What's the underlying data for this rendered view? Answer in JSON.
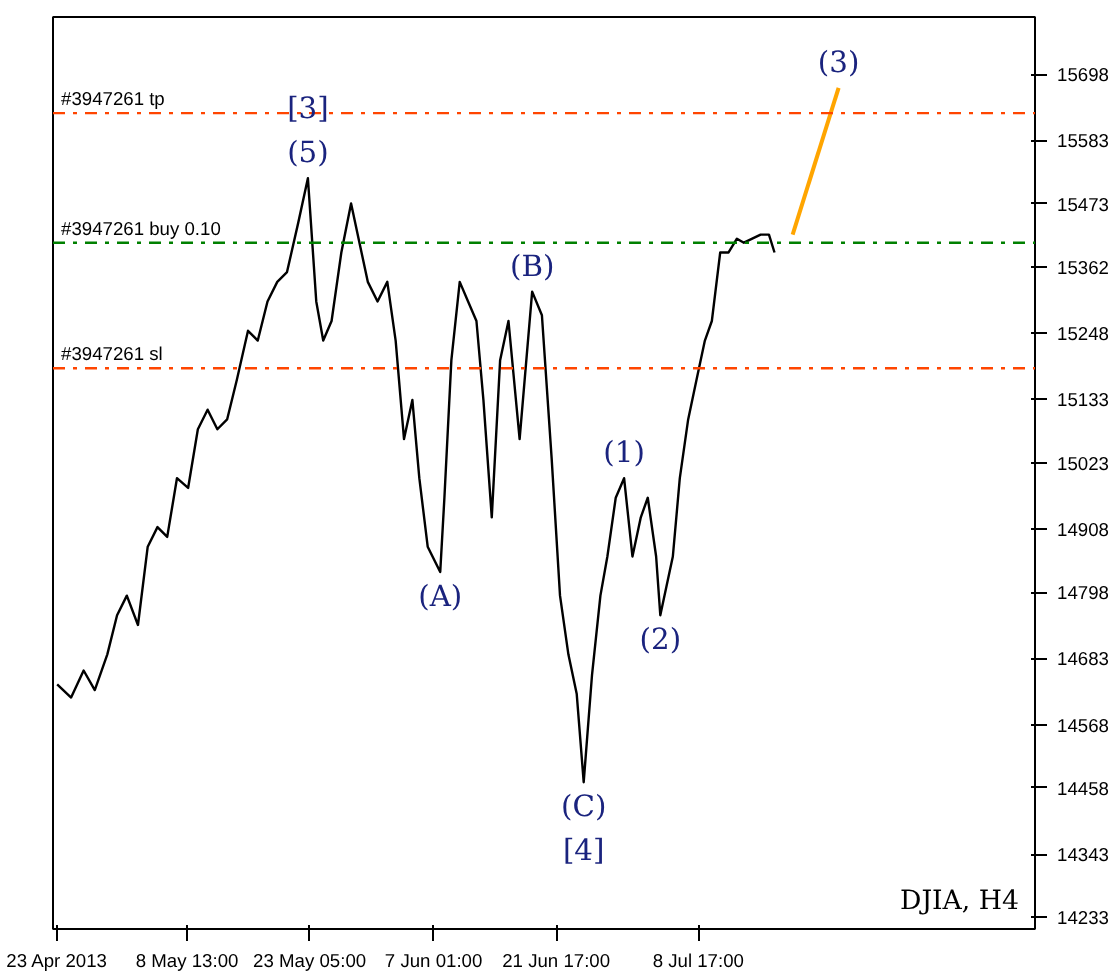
{
  "chart_data": {
    "type": "line",
    "x": [
      "2013-04-23T00:00",
      "2013-04-24T16:00",
      "2013-04-26T04:00",
      "2013-04-27T12:00",
      "2013-04-29T00:00",
      "2013-04-30T04:00",
      "2013-05-01T08:00",
      "2013-05-02T16:00",
      "2013-05-03T20:00",
      "2013-05-05T00:00",
      "2013-05-06T04:00",
      "2013-05-07T08:00",
      "2013-05-08T16:00",
      "2013-05-09T20:00",
      "2013-05-11T00:00",
      "2013-05-12T04:00",
      "2013-05-13T08:00",
      "2013-05-14T12:00",
      "2013-05-15T20:00",
      "2013-05-17T00:00",
      "2013-05-18T04:00",
      "2013-05-19T08:00",
      "2013-05-20T12:00",
      "2013-05-21T20:00",
      "2013-05-23T00:00",
      "2013-05-24T00:00",
      "2013-05-24T20:00",
      "2013-05-25T20:00",
      "2013-05-27T00:00",
      "2013-05-28T04:00",
      "2013-05-29T04:00",
      "2013-05-30T04:00",
      "2013-05-31T08:00",
      "2013-06-01T12:00",
      "2013-06-02T12:00",
      "2013-06-03T12:00",
      "2013-06-04T12:00",
      "2013-06-05T08:00",
      "2013-06-06T08:00",
      "2013-06-07T20:00",
      "2013-06-08T08:00",
      "2013-06-09T04:00",
      "2013-06-10T04:00",
      "2013-06-11T04:00",
      "2013-06-12T04:00",
      "2013-06-13T00:00",
      "2013-06-14T00:00",
      "2013-06-15T00:00",
      "2013-06-16T00:00",
      "2013-06-17T08:00",
      "2013-06-18T20:00",
      "2013-06-20T00:00",
      "2013-06-21T04:00",
      "2013-06-22T04:00",
      "2013-06-23T04:00",
      "2013-06-24T04:00",
      "2013-06-25T00:00",
      "2013-06-26T00:00",
      "2013-06-27T00:00",
      "2013-06-27T20:00",
      "2013-06-28T20:00",
      "2013-06-29T20:00",
      "2013-06-30T20:00",
      "2013-07-01T20:00",
      "2013-07-02T16:00",
      "2013-07-03T16:00",
      "2013-07-04T04:00",
      "2013-07-05T16:00",
      "2013-07-06T12:00",
      "2013-07-07T12:00",
      "2013-07-08T12:00",
      "2013-07-09T12:00",
      "2013-07-10T08:00",
      "2013-07-11T08:00",
      "2013-07-12T08:00",
      "2013-07-13T08:00",
      "2013-07-14T04:00",
      "2013-07-15T04:00",
      "2013-07-16T04:00",
      "2013-07-17T04:00",
      "2013-07-17T20:00"
    ],
    "series": [
      {
        "color": "#000000",
        "values": [
          14638,
          14615,
          14662,
          14628,
          14690,
          14758,
          14792,
          14741,
          14877,
          14911,
          14894,
          14996,
          14979,
          15081,
          15115,
          15081,
          15098,
          15167,
          15252,
          15235,
          15303,
          15337,
          15354,
          15439,
          15517,
          15303,
          15235,
          15269,
          15388,
          15473,
          15405,
          15337,
          15303,
          15337,
          15235,
          15064,
          15132,
          14996,
          14877,
          14833,
          14962,
          15201,
          15337,
          15303,
          15269,
          15132,
          14928,
          15201,
          15269,
          15064,
          15320,
          15279,
          15030,
          14792,
          14690,
          14621,
          14468,
          14655,
          14792,
          14860,
          14962,
          14996,
          14860,
          14928,
          14962,
          14860,
          14758,
          14860,
          14996,
          15098,
          15167,
          15235,
          15269,
          15388,
          15388,
          15412,
          15405,
          15412,
          15419,
          15419,
          15388
        ]
      },
      {
        "type": "line",
        "color": "#ffa500",
        "x": [
          "2013-07-20T00:00",
          "2013-07-25T12:00"
        ],
        "values": [
          15419,
          15674
        ]
      }
    ],
    "xlim": [
      "2013-04-22T12:00",
      "2013-08-18T00:00"
    ],
    "xticks": [
      {
        "value": "2013-04-23T00:00",
        "label": "23 Apr 2013"
      },
      {
        "value": "2013-05-08T13:00",
        "label": "8 May 13:00"
      },
      {
        "value": "2013-05-23T05:00",
        "label": "23 May 05:00"
      },
      {
        "value": "2013-06-07T01:00",
        "label": "7 Jun 01:00"
      },
      {
        "value": "2013-06-21T17:00",
        "label": "21 Jun 17:00"
      },
      {
        "value": "2013-07-08T17:00",
        "label": "8 Jul 17:00"
      }
    ],
    "ylim": [
      14213,
      15797
    ],
    "yticks": [
      14233,
      14343,
      14458,
      14568,
      14683,
      14798,
      14908,
      15023,
      15133,
      15248,
      15362,
      15473,
      15583,
      15698
    ],
    "ref_lines": [
      {
        "axis": "y",
        "value": 15630,
        "label": "#3947261 tp",
        "color": "#ff4500",
        "line_style": "dashdot"
      },
      {
        "axis": "y",
        "value": 15405,
        "label": "#3947261 buy 0.10",
        "color": "#008000",
        "line_style": "dashdot"
      },
      {
        "axis": "y",
        "value": 15187,
        "label": "#3947261 sl",
        "color": "#ff4500",
        "line_style": "dashdot"
      }
    ],
    "annotations": [
      {
        "text": "(5)",
        "x": "2013-05-23T00:00",
        "y": 15517
      },
      {
        "text": "[3]",
        "x": "2013-05-23T00:00",
        "y": 15517
      },
      {
        "text": "(B)",
        "x": "2013-06-18T20:00",
        "y": 15320
      },
      {
        "text": "(A)",
        "x": "2013-06-07T20:00",
        "y": 14833
      },
      {
        "text": "(1)",
        "x": "2013-06-29T20:00",
        "y": 14996
      },
      {
        "text": "(2)",
        "x": "2013-07-04T04:00",
        "y": 14758
      },
      {
        "text": "(C)",
        "x": "2013-06-25T00:00",
        "y": 14468
      },
      {
        "text": "[4]",
        "x": "2013-06-25T00:00",
        "y": 14468
      },
      {
        "text": "(3)",
        "x": "2013-07-25T12:00",
        "y": 15674
      },
      "DJIA, H4"
    ],
    "grid": false,
    "line_style": "solid",
    "marker": "none"
  }
}
